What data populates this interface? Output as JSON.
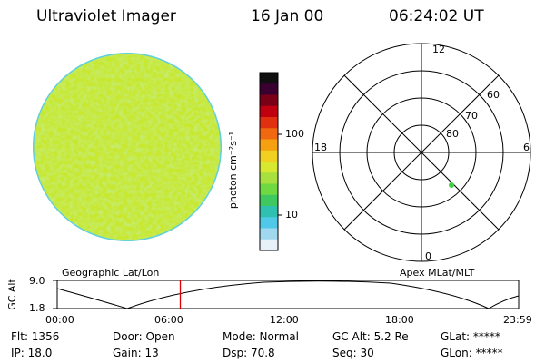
{
  "header": {
    "title": "Ultraviolet Imager",
    "date": "16 Jan 00",
    "time": "06:24:02 UT"
  },
  "colorbar": {
    "unit_label": "photon cm⁻²s⁻¹",
    "ticks": [
      "100",
      "10"
    ],
    "colors": [
      "#101010",
      "#3a0030",
      "#7a0018",
      "#c00010",
      "#e03010",
      "#f06810",
      "#f5a010",
      "#f0d020",
      "#d8e830",
      "#a8e040",
      "#70d840",
      "#40c860",
      "#30c0b0",
      "#50c8e8",
      "#a0d8f0",
      "#e8f0f8"
    ]
  },
  "polar": {
    "mlt_labels": {
      "top": "12",
      "left": "18",
      "right": "6",
      "bottom": "0"
    },
    "lat_labels": [
      "60",
      "70",
      "80"
    ]
  },
  "timeline": {
    "left_label": "Geographic Lat/Lon",
    "right_label": "Apex MLat/MLT",
    "yaxis_label": "GC Alt",
    "y_max": "9.0",
    "y_min": "1.8",
    "x_ticks": [
      "00:00",
      "06:00",
      "12:00",
      "18:00",
      "23:59"
    ],
    "cursor_hours": 6.4
  },
  "info": {
    "flt": "Flt: 1356",
    "ip": "IP: 18.0",
    "door": "Door: Open",
    "gain": "Gain: 13",
    "mode": "Mode: Normal",
    "dsp": "Dsp:    70.8",
    "gcalt": "GC Alt: 5.2 Re",
    "seq": "Seq: 30",
    "glat": "GLat: *****",
    "glon": "GLon: *****"
  }
}
